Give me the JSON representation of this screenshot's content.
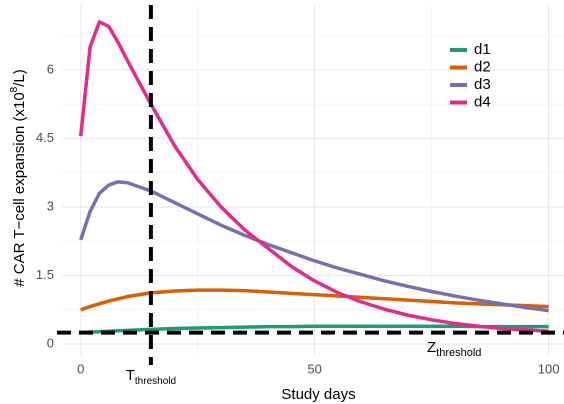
{
  "chart_data": {
    "type": "line",
    "x_label": "Study days",
    "y_label": [
      "# CAR T−cell expansion (x10",
      "8",
      "/L)"
    ],
    "x": [
      0,
      2,
      4,
      6,
      8,
      10,
      15,
      20,
      25,
      30,
      35,
      40,
      45,
      50,
      55,
      60,
      65,
      70,
      75,
      80,
      85,
      90,
      95,
      100
    ],
    "series": [
      {
        "name": "d1",
        "color": "#1b9e77",
        "values": [
          0.25,
          0.26,
          0.27,
          0.28,
          0.29,
          0.3,
          0.32,
          0.34,
          0.35,
          0.36,
          0.37,
          0.38,
          0.38,
          0.39,
          0.39,
          0.39,
          0.39,
          0.39,
          0.39,
          0.39,
          0.38,
          0.38,
          0.38,
          0.38
        ]
      },
      {
        "name": "d2",
        "color": "#d95f02",
        "values": [
          0.75,
          0.82,
          0.88,
          0.94,
          0.99,
          1.04,
          1.12,
          1.16,
          1.18,
          1.18,
          1.17,
          1.14,
          1.11,
          1.08,
          1.05,
          1.02,
          0.99,
          0.96,
          0.93,
          0.9,
          0.88,
          0.86,
          0.84,
          0.82
        ]
      },
      {
        "name": "d3",
        "color": "#7570b3",
        "values": [
          2.28,
          2.9,
          3.3,
          3.48,
          3.55,
          3.53,
          3.35,
          3.1,
          2.85,
          2.6,
          2.38,
          2.18,
          2.0,
          1.82,
          1.66,
          1.52,
          1.38,
          1.26,
          1.15,
          1.05,
          0.96,
          0.88,
          0.8,
          0.73
        ]
      },
      {
        "name": "d4",
        "color": "#e7298a",
        "values": [
          4.55,
          6.5,
          7.05,
          6.95,
          6.6,
          6.2,
          5.25,
          4.35,
          3.6,
          3.0,
          2.5,
          2.1,
          1.7,
          1.38,
          1.12,
          0.92,
          0.76,
          0.63,
          0.53,
          0.45,
          0.39,
          0.34,
          0.31,
          0.28
        ]
      }
    ],
    "xlim": [
      -4,
      103.5
    ],
    "ylim": [
      -0.24,
      7.42
    ],
    "xticks": [
      0,
      50,
      100
    ],
    "yticks": [
      0,
      1.5,
      3,
      4.5,
      6
    ],
    "xminorticks": [
      25,
      75
    ],
    "yminorticks": [
      0.75,
      2.25,
      3.75,
      5.25,
      6.75
    ],
    "grid": true,
    "legend": "top-right",
    "threshold_x": {
      "value": 15,
      "label": [
        "T",
        "threshold"
      ]
    },
    "threshold_y": {
      "value": 0.25,
      "label": [
        "Z",
        "threshold"
      ]
    }
  }
}
